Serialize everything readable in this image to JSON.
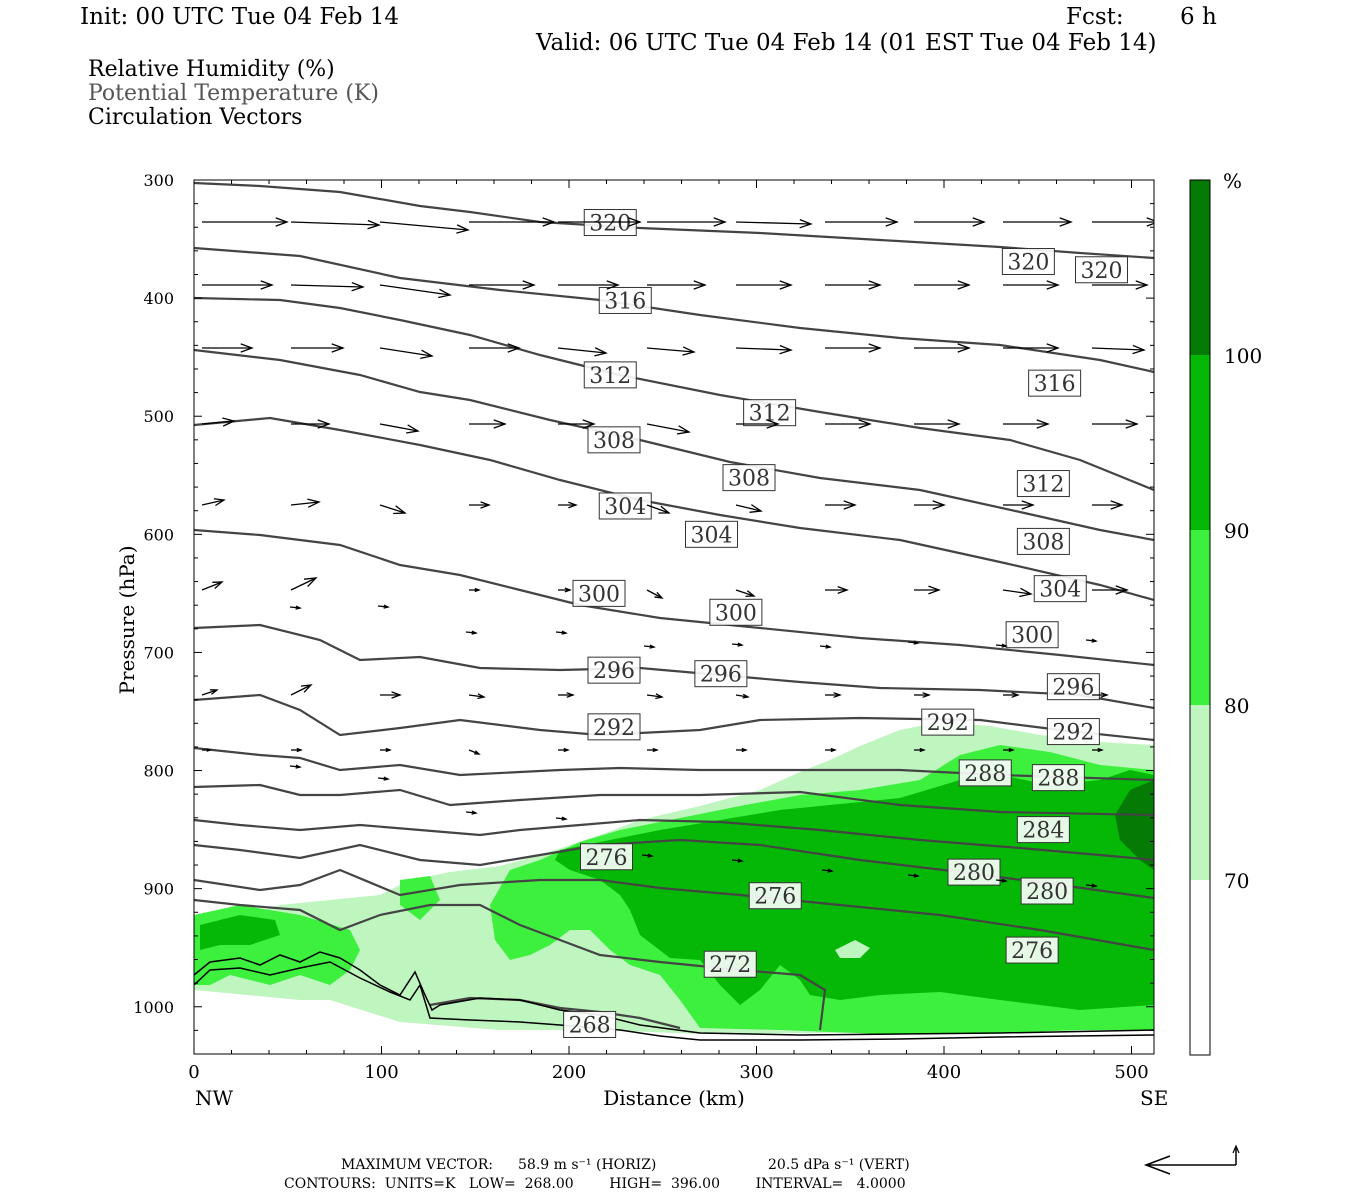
{
  "header": {
    "init": "Init: 00 UTC Tue 04 Feb 14",
    "fcst_label": "Fcst:",
    "fcst_value": "6 h",
    "valid": "Valid: 06 UTC Tue 04 Feb 14 (01 EST Tue 04 Feb 14)"
  },
  "legend_fields": [
    "Relative Humidity (%)",
    "Potential Temperature (K)",
    "Circulation Vectors"
  ],
  "colors": {
    "rh_70_80": "#bff5bf",
    "rh_80_90": "#3ef03e",
    "rh_90_100": "#05b805",
    "rh_100": "#057a05",
    "contour": "#444444",
    "vector": "#000000"
  },
  "chart_data": {
    "type": "contour",
    "xlabel": "Distance (km)",
    "ylabel": "Pressure (hPa)",
    "x_ticks": [
      0,
      100,
      200,
      300,
      400,
      500
    ],
    "y_ticks": [
      300,
      400,
      500,
      600,
      700,
      800,
      900,
      1000
    ],
    "xlim": [
      0,
      512
    ],
    "ylim": [
      300,
      1040
    ],
    "y_inverted": true,
    "x_end_labels": {
      "left": "NW",
      "right": "SE"
    },
    "colorbar": {
      "unit": "%",
      "levels": [
        70,
        80,
        90,
        100
      ],
      "label_texts": [
        "100",
        "90",
        "80",
        "70"
      ]
    },
    "contour_labels": [
      {
        "text": "320",
        "x": 222,
        "p": 336
      },
      {
        "text": "320",
        "x": 445,
        "p": 369
      },
      {
        "text": "320",
        "x": 484,
        "p": 376
      },
      {
        "text": "316",
        "x": 230,
        "p": 402
      },
      {
        "text": "316",
        "x": 459,
        "p": 472
      },
      {
        "text": "312",
        "x": 222,
        "p": 465
      },
      {
        "text": "312",
        "x": 307,
        "p": 497
      },
      {
        "text": "312",
        "x": 453,
        "p": 557
      },
      {
        "text": "308",
        "x": 224,
        "p": 520
      },
      {
        "text": "308",
        "x": 296,
        "p": 552
      },
      {
        "text": "308",
        "x": 453,
        "p": 606
      },
      {
        "text": "304",
        "x": 230,
        "p": 576
      },
      {
        "text": "304",
        "x": 276,
        "p": 600
      },
      {
        "text": "304",
        "x": 462,
        "p": 646
      },
      {
        "text": "300",
        "x": 216,
        "p": 650
      },
      {
        "text": "300",
        "x": 289,
        "p": 666
      },
      {
        "text": "300",
        "x": 447,
        "p": 685
      },
      {
        "text": "296",
        "x": 224,
        "p": 715
      },
      {
        "text": "296",
        "x": 281,
        "p": 718
      },
      {
        "text": "296",
        "x": 469,
        "p": 729
      },
      {
        "text": "292",
        "x": 224,
        "p": 763
      },
      {
        "text": "292",
        "x": 402,
        "p": 759
      },
      {
        "text": "292",
        "x": 469,
        "p": 767
      },
      {
        "text": "288",
        "x": 422,
        "p": 802
      },
      {
        "text": "288",
        "x": 461,
        "p": 806
      },
      {
        "text": "284",
        "x": 453,
        "p": 850
      },
      {
        "text": "280",
        "x": 416,
        "p": 886
      },
      {
        "text": "280",
        "x": 455,
        "p": 902
      },
      {
        "text": "276",
        "x": 220,
        "p": 873
      },
      {
        "text": "276",
        "x": 310,
        "p": 906
      },
      {
        "text": "276",
        "x": 447,
        "p": 952
      },
      {
        "text": "272",
        "x": 286,
        "p": 964
      },
      {
        "text": "268",
        "x": 211,
        "p": 1015
      }
    ]
  },
  "footer": {
    "max_vector_label": "MAXIMUM VECTOR:",
    "max_vector_horiz": "58.9 m s⁻¹ (HORIZ)",
    "max_vector_vert": "20.5 dPa s⁻¹ (VERT)",
    "contours_line": "CONTOURS:  UNITS=K   LOW=  268.00        HIGH=  396.00        INTERVAL=   4.0000"
  }
}
